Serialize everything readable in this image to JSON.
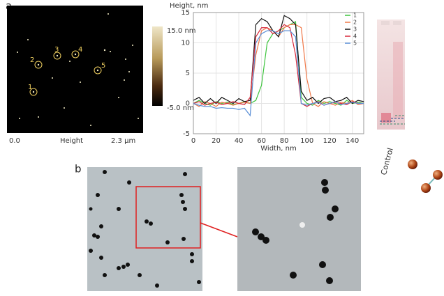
{
  "panel_labels": [
    "a",
    "b"
  ],
  "afm": {
    "circle_labels": [
      "1",
      "2",
      "3",
      "4",
      "5"
    ],
    "colorbar_max": "15.0 nm",
    "colorbar_min": "-5.0 nm",
    "x_start": "0.0",
    "x_title": "Height",
    "x_end": "2.3 μm"
  },
  "gel": {
    "lane_label": "Control"
  },
  "chart_data": {
    "type": "line",
    "ylabel": "Height, nm",
    "xlabel": "Width, nm",
    "x": [
      0,
      5,
      10,
      15,
      20,
      25,
      30,
      35,
      40,
      45,
      50,
      55,
      60,
      65,
      70,
      75,
      80,
      85,
      90,
      95,
      100,
      105,
      110,
      115,
      120,
      125,
      130,
      135,
      140,
      145,
      150
    ],
    "xlim": [
      0,
      150
    ],
    "xticks": [
      0,
      20,
      40,
      60,
      80,
      100,
      120,
      140
    ],
    "ylim": [
      -5,
      15
    ],
    "yticks": [
      -5,
      0,
      5,
      10,
      15
    ],
    "grid": true,
    "series": [
      {
        "name": "1",
        "color": "#3cc43c",
        "values": [
          0,
          0.5,
          0,
          -0.3,
          0.3,
          0,
          0.2,
          -0.2,
          0,
          0.3,
          0,
          0.5,
          3,
          10,
          11.5,
          12,
          12.5,
          13,
          13.5,
          1,
          0,
          -0.3,
          0.5,
          0,
          0.3,
          0,
          -0.3,
          0.5,
          0,
          0.2,
          0
        ]
      },
      {
        "name": "2",
        "color": "#f07848",
        "values": [
          0,
          -0.5,
          0.3,
          0,
          -0.5,
          0.2,
          0,
          -0.3,
          0,
          0.2,
          0,
          8,
          12,
          12.5,
          12,
          11,
          12.5,
          13,
          13,
          12.5,
          4,
          0,
          -0.5,
          0.3,
          0,
          -0.3,
          0.2,
          0,
          0.5,
          -0.2,
          0
        ]
      },
      {
        "name": "3",
        "color": "#111111",
        "values": [
          0.5,
          1,
          0,
          0.8,
          0,
          1,
          0.5,
          0,
          0.8,
          0.3,
          0.5,
          13,
          14,
          13.5,
          12,
          11,
          14.5,
          14,
          13,
          2,
          0.5,
          1,
          0,
          0.8,
          1,
          0.3,
          0.5,
          1,
          0,
          0.5,
          0.3
        ]
      },
      {
        "name": "4",
        "color": "#d8283a",
        "values": [
          0,
          0.3,
          -0.3,
          0,
          0.2,
          -0.2,
          0,
          0.3,
          0,
          -0.2,
          1,
          11,
          12.5,
          12.5,
          11.5,
          12,
          13,
          12.5,
          8,
          0,
          -0.5,
          0,
          0.3,
          -0.3,
          0,
          0.2,
          0,
          -0.2,
          0.3,
          0,
          0
        ]
      },
      {
        "name": "5",
        "color": "#5b8fd6",
        "values": [
          0,
          -0.3,
          -0.5,
          -0.5,
          -0.8,
          -0.7,
          -0.8,
          -0.8,
          -1,
          -0.8,
          -2,
          10,
          11.5,
          12,
          12,
          11.5,
          12,
          12,
          11,
          0,
          -0.3,
          0,
          0.2,
          -0.3,
          0,
          0.3,
          -0.2,
          0,
          0.2,
          0,
          0
        ]
      }
    ]
  }
}
